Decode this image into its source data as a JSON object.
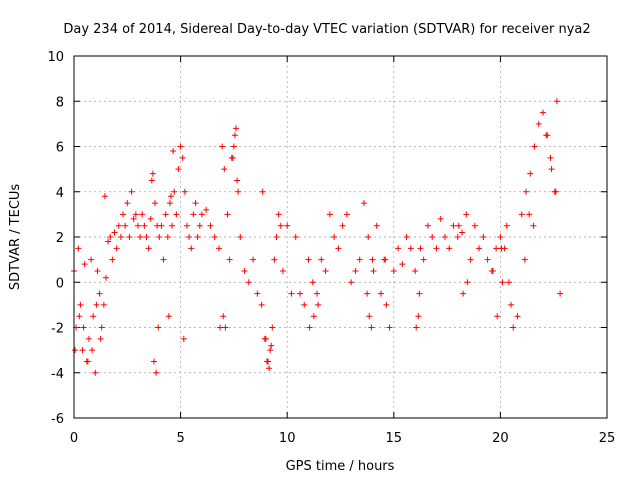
{
  "chart_data": {
    "type": "scatter",
    "title": "Day 234 of 2014, Sidereal Day-to-day VTEC variation (SDTVAR) for receiver nya2",
    "xlabel": "GPS time / hours",
    "ylabel": "SDTVAR / TECUs",
    "xlim": [
      0,
      25
    ],
    "ylim": [
      -6,
      10
    ],
    "xticks": [
      "0",
      "5",
      "10",
      "15",
      "20",
      "25"
    ],
    "yticks": [
      "-6",
      "-4",
      "-2",
      "0",
      "2",
      "4",
      "6",
      "8",
      "10"
    ],
    "grid": true,
    "marker": "+",
    "series": [
      {
        "name": "SDTVAR",
        "color": "#ff0000",
        "x": [
          0.0,
          0.1,
          0.2,
          0.3,
          0.4,
          0.5,
          0.6,
          0.7,
          0.8,
          0.9,
          1.0,
          1.1,
          1.2,
          1.3,
          1.4,
          1.5,
          1.6,
          1.7,
          1.8,
          1.9,
          2.0,
          2.1,
          2.2,
          2.3,
          2.4,
          2.5,
          2.6,
          2.7,
          2.8,
          2.9,
          3.0,
          3.1,
          3.2,
          3.3,
          3.4,
          3.5,
          3.6,
          3.7,
          3.8,
          3.9,
          4.0,
          4.1,
          4.2,
          4.3,
          4.4,
          4.5,
          4.6,
          4.7,
          4.8,
          4.9,
          5.0,
          5.1,
          5.2,
          5.3,
          5.4,
          5.5,
          5.6,
          5.7,
          5.8,
          5.9,
          6.0,
          6.2,
          6.4,
          6.6,
          6.8,
          7.0,
          7.1,
          7.2,
          7.3,
          7.4,
          7.5,
          7.6,
          7.7,
          7.8,
          8.0,
          8.2,
          8.4,
          8.6,
          8.8,
          9.0,
          9.1,
          9.2,
          9.3,
          9.4,
          9.5,
          9.6,
          9.7,
          9.8,
          10.0,
          10.2,
          10.4,
          10.6,
          10.8,
          11.0,
          11.2,
          11.4,
          11.6,
          11.8,
          12.0,
          12.2,
          12.4,
          12.6,
          12.8,
          13.0,
          13.2,
          13.4,
          13.6,
          13.8,
          14.0,
          14.2,
          14.4,
          14.6,
          14.8,
          15.0,
          15.2,
          15.4,
          15.6,
          15.8,
          16.0,
          16.2,
          16.4,
          16.6,
          16.8,
          17.0,
          17.2,
          17.4,
          17.6,
          17.8,
          18.0,
          18.2,
          18.4,
          18.6,
          18.8,
          19.0,
          19.2,
          19.4,
          19.6,
          19.8,
          20.0,
          20.1,
          20.2,
          20.3,
          20.4,
          20.5,
          20.6,
          20.8,
          21.0,
          21.2,
          21.4,
          21.6,
          21.8,
          22.0,
          22.2,
          22.4,
          22.6,
          22.8,
          0.05,
          0.25,
          0.45,
          0.65,
          0.85,
          1.05,
          1.25,
          1.45,
          3.65,
          3.75,
          3.85,
          3.95,
          4.45,
          4.55,
          4.65,
          5.15,
          6.85,
          6.95,
          7.05,
          7.45,
          7.55,
          7.65,
          8.85,
          8.95,
          9.05,
          9.15,
          9.25,
          11.05,
          11.25,
          11.45,
          13.75,
          13.85,
          13.95,
          14.05,
          14.55,
          14.65,
          16.05,
          16.15,
          16.25,
          18.05,
          18.25,
          18.45,
          19.65,
          19.85,
          20.05,
          21.15,
          21.35,
          21.55,
          22.15,
          22.35,
          22.55,
          22.65
        ],
        "y": [
          0.5,
          -2.0,
          1.5,
          -1.0,
          -3.0,
          0.8,
          -3.5,
          -2.5,
          1.0,
          -1.5,
          -4.0,
          0.5,
          -0.5,
          -2.0,
          -1.0,
          0.2,
          1.8,
          2.0,
          1.0,
          2.2,
          1.5,
          2.5,
          2.0,
          3.0,
          2.5,
          3.5,
          2.0,
          4.0,
          2.8,
          3.0,
          2.5,
          2.0,
          3.0,
          2.5,
          2.0,
          1.5,
          2.8,
          4.8,
          3.5,
          2.5,
          2.0,
          2.5,
          1.0,
          3.0,
          2.0,
          3.5,
          2.5,
          4.0,
          3.0,
          5.0,
          6.0,
          5.5,
          4.0,
          2.5,
          2.0,
          1.5,
          3.0,
          3.5,
          2.0,
          2.5,
          3.0,
          3.2,
          2.5,
          2.0,
          1.5,
          -1.5,
          -2.0,
          3.0,
          1.0,
          5.5,
          6.0,
          6.8,
          4.0,
          2.0,
          0.5,
          0.0,
          1.0,
          -0.5,
          -1.0,
          -2.5,
          -3.5,
          -3.0,
          -2.0,
          1.0,
          2.0,
          3.0,
          2.5,
          0.5,
          2.5,
          -0.5,
          2.0,
          -0.5,
          -1.0,
          1.0,
          0.0,
          -0.5,
          1.0,
          0.5,
          3.0,
          2.0,
          1.5,
          2.5,
          3.0,
          0.0,
          0.5,
          1.0,
          3.5,
          2.0,
          1.0,
          2.5,
          -0.5,
          1.0,
          -2.0,
          0.5,
          1.5,
          0.8,
          2.0,
          1.5,
          0.5,
          -0.5,
          1.0,
          2.5,
          2.0,
          1.5,
          2.8,
          2.0,
          1.5,
          2.5,
          2.0,
          2.2,
          3.0,
          1.0,
          2.5,
          1.5,
          2.0,
          1.0,
          0.5,
          1.5,
          2.0,
          0.0,
          1.5,
          2.5,
          0.0,
          -1.0,
          -2.0,
          -1.5,
          3.0,
          4.0,
          4.8,
          6.0,
          7.0,
          7.5,
          6.5,
          5.0,
          4.0,
          -0.5,
          -3.0,
          -1.5,
          -2.0,
          -3.5,
          -3.0,
          -1.0,
          -2.5,
          3.8,
          4.5,
          -3.5,
          -4.0,
          -2.0,
          -1.5,
          3.8,
          5.8,
          -2.5,
          -2.0,
          6.0,
          5.0,
          5.5,
          6.5,
          4.5,
          4.0,
          -2.5,
          -3.5,
          -3.8,
          -2.8,
          -2.0,
          -1.5,
          -1.0,
          -0.5,
          -1.5,
          -2.0,
          0.5,
          1.0,
          -1.0,
          -2.0,
          -1.5,
          1.5,
          2.5,
          -0.5,
          0.0,
          0.5,
          -1.5,
          1.5,
          1.0,
          3.0,
          2.5,
          6.5,
          5.5,
          4.0,
          8.0
        ]
      }
    ]
  }
}
